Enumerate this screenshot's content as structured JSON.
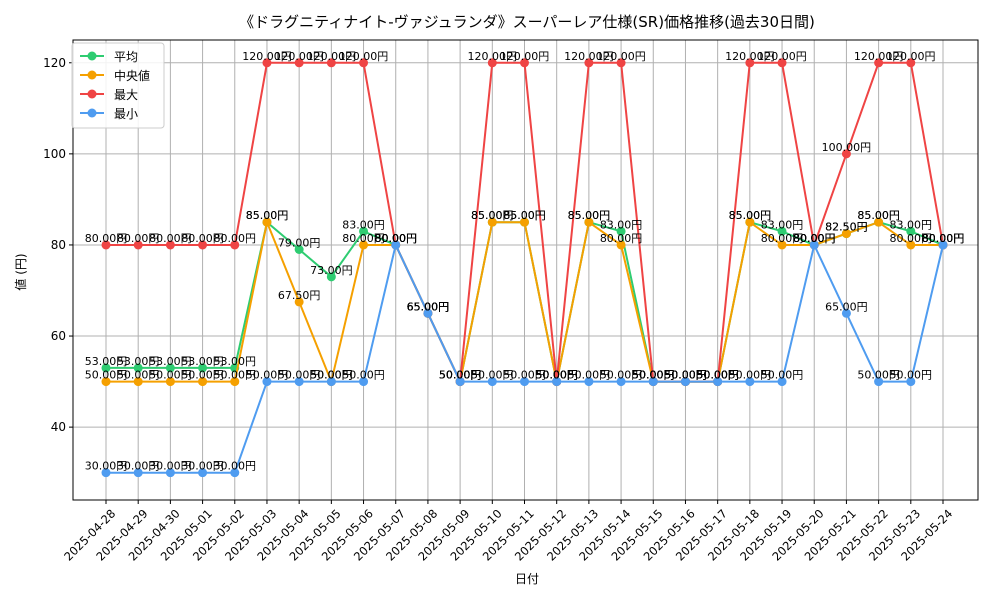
{
  "chart_data": {
    "type": "line",
    "title": "《ドラグニティナイト-ヴァジュランダ》スーパーレア仕様(SR)価格推移(過去30日間)",
    "xlabel": "日付",
    "ylabel": "値 (円)",
    "ylim": [
      24,
      125
    ],
    "yticks": [
      40,
      60,
      80,
      100,
      120
    ],
    "grid": true,
    "legend_position": "top-left",
    "label_suffix": "円",
    "categories": [
      "2025-04-28",
      "2025-04-29",
      "2025-04-30",
      "2025-05-01",
      "2025-05-02",
      "2025-05-03",
      "2025-05-04",
      "2025-05-05",
      "2025-05-06",
      "2025-05-07",
      "2025-05-08",
      "2025-05-09",
      "2025-05-10",
      "2025-05-11",
      "2025-05-12",
      "2025-05-13",
      "2025-05-14",
      "2025-05-15",
      "2025-05-16",
      "2025-05-17",
      "2025-05-18",
      "2025-05-19",
      "2025-05-20",
      "2025-05-21",
      "2025-05-22",
      "2025-05-23",
      "2025-05-24"
    ],
    "series": [
      {
        "name": "平均",
        "color": "#2ecc71",
        "values": [
          53,
          53,
          53,
          53,
          53,
          85,
          79,
          73,
          83,
          80,
          65,
          50,
          85,
          85,
          50,
          85,
          83,
          50,
          50,
          50,
          85,
          83,
          80,
          82.5,
          85,
          83,
          80
        ]
      },
      {
        "name": "中央値",
        "color": "#f5a000",
        "values": [
          50,
          50,
          50,
          50,
          50,
          85,
          67.5,
          50,
          80,
          80,
          65,
          50,
          85,
          85,
          50,
          85,
          80,
          50,
          50,
          50,
          85,
          80,
          80,
          82.5,
          85,
          80,
          80
        ]
      },
      {
        "name": "最大",
        "color": "#ef4444",
        "values": [
          80,
          80,
          80,
          80,
          80,
          120,
          120,
          120,
          120,
          80,
          65,
          50,
          120,
          120,
          50,
          120,
          120,
          50,
          50,
          50,
          120,
          120,
          80,
          100,
          120,
          120,
          80
        ]
      },
      {
        "name": "最小",
        "color": "#4f9cf0",
        "values": [
          30,
          30,
          30,
          30,
          30,
          50,
          50,
          50,
          50,
          80,
          65,
          50,
          50,
          50,
          50,
          50,
          50,
          50,
          50,
          50,
          50,
          50,
          80,
          65,
          50,
          50,
          80
        ]
      }
    ]
  }
}
